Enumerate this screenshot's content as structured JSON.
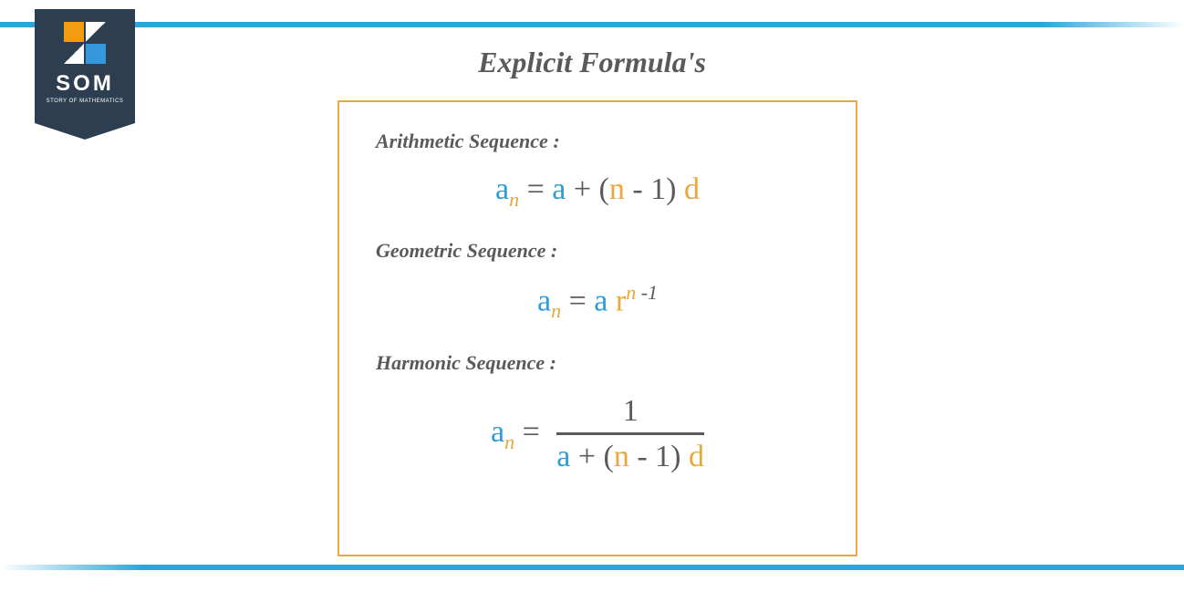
{
  "colors": {
    "bar_blue": "#2da5d9",
    "logo_bg": "#2c3e50",
    "logo_orange": "#f39c12",
    "logo_blue": "#3498db",
    "border_orange": "#e8a83a",
    "text_gray": "#5a5a5a",
    "a_blue": "#2e9cd6",
    "accent_orange": "#e8a83a"
  },
  "logo": {
    "text": "SOM",
    "subtitle": "STORY OF MATHEMATICS"
  },
  "title": "Explicit Formula's",
  "sections": {
    "arithmetic": {
      "label": "Arithmetic Sequence :",
      "formula_parts": {
        "a": "a",
        "sub_n": "n",
        "eq": " = ",
        "a2": "a",
        "plus": " + (",
        "n": "n",
        "minus_one": " - 1) ",
        "d": "d"
      }
    },
    "geometric": {
      "label": "Geometric Sequence :",
      "formula_parts": {
        "a": "a",
        "sub_n": "n",
        "eq": " =  ",
        "a2": "a",
        "space": " ",
        "r": "r",
        "sup_n": "n",
        "sup_minus1": " -1"
      }
    },
    "harmonic": {
      "label": "Harmonic Sequence :",
      "formula_parts": {
        "a": "a",
        "sub_n": "n",
        "eq": " = ",
        "num": "1",
        "den_a": "a",
        "den_plus": " + (",
        "den_n": "n",
        "den_minus1": " - 1) ",
        "den_d": "d"
      }
    }
  }
}
